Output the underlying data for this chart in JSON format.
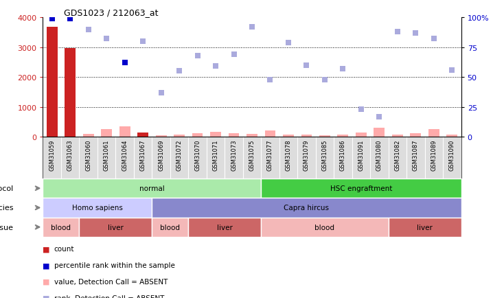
{
  "title": "GDS1023 / 212063_at",
  "samples": [
    "GSM31059",
    "GSM31063",
    "GSM31060",
    "GSM31061",
    "GSM31064",
    "GSM31067",
    "GSM31069",
    "GSM31072",
    "GSM31070",
    "GSM31071",
    "GSM31073",
    "GSM31075",
    "GSM31077",
    "GSM31078",
    "GSM31079",
    "GSM31085",
    "GSM31086",
    "GSM31091",
    "GSM31080",
    "GSM31082",
    "GSM31087",
    "GSM31089",
    "GSM31090"
  ],
  "count_values": [
    3680,
    2970,
    0,
    0,
    0,
    130,
    0,
    0,
    0,
    0,
    0,
    0,
    0,
    0,
    0,
    0,
    0,
    0,
    0,
    0,
    0,
    0,
    0
  ],
  "count_absent": [
    false,
    false,
    true,
    true,
    true,
    false,
    true,
    true,
    true,
    true,
    true,
    true,
    true,
    true,
    true,
    true,
    true,
    true,
    true,
    true,
    true,
    true,
    true
  ],
  "count_absent_values": [
    0,
    0,
    100,
    250,
    350,
    0,
    50,
    80,
    120,
    160,
    110,
    90,
    220,
    80,
    60,
    50,
    70,
    130,
    310,
    70,
    110,
    250,
    80
  ],
  "rank_values": [
    99,
    99,
    90,
    82,
    62,
    80,
    37,
    55,
    68,
    59,
    69,
    92,
    48,
    79,
    60,
    48,
    57,
    23,
    17,
    88,
    87,
    82,
    56
  ],
  "rank_absent": [
    false,
    false,
    true,
    true,
    false,
    true,
    true,
    true,
    true,
    true,
    true,
    true,
    true,
    true,
    true,
    true,
    true,
    true,
    true,
    true,
    true,
    true,
    true
  ],
  "protocol_groups": [
    {
      "label": "normal",
      "start": 0,
      "end": 12,
      "color": "#aaeaaa"
    },
    {
      "label": "HSC engraftment",
      "start": 12,
      "end": 23,
      "color": "#44cc44"
    }
  ],
  "species_groups": [
    {
      "label": "Homo sapiens",
      "start": 0,
      "end": 6,
      "color": "#ccccff"
    },
    {
      "label": "Capra hircus",
      "start": 6,
      "end": 23,
      "color": "#8888cc"
    }
  ],
  "tissue_groups": [
    {
      "label": "blood",
      "start": 0,
      "end": 2,
      "color": "#f4b8b8"
    },
    {
      "label": "liver",
      "start": 2,
      "end": 6,
      "color": "#cc6666"
    },
    {
      "label": "blood",
      "start": 6,
      "end": 8,
      "color": "#f4b8b8"
    },
    {
      "label": "liver",
      "start": 8,
      "end": 12,
      "color": "#cc6666"
    },
    {
      "label": "blood",
      "start": 12,
      "end": 19,
      "color": "#f4b8b8"
    },
    {
      "label": "liver",
      "start": 19,
      "end": 23,
      "color": "#cc6666"
    }
  ],
  "ylim_left": [
    0,
    4000
  ],
  "ylim_right": [
    0,
    100
  ],
  "yticks_left": [
    0,
    1000,
    2000,
    3000,
    4000
  ],
  "yticks_right": [
    0,
    25,
    50,
    75,
    100
  ],
  "bar_color_present": "#cc2222",
  "bar_color_absent": "#ffaaaa",
  "dot_color_present": "#0000cc",
  "dot_color_absent": "#aaaadd",
  "xticklabel_bg": "#dddddd"
}
